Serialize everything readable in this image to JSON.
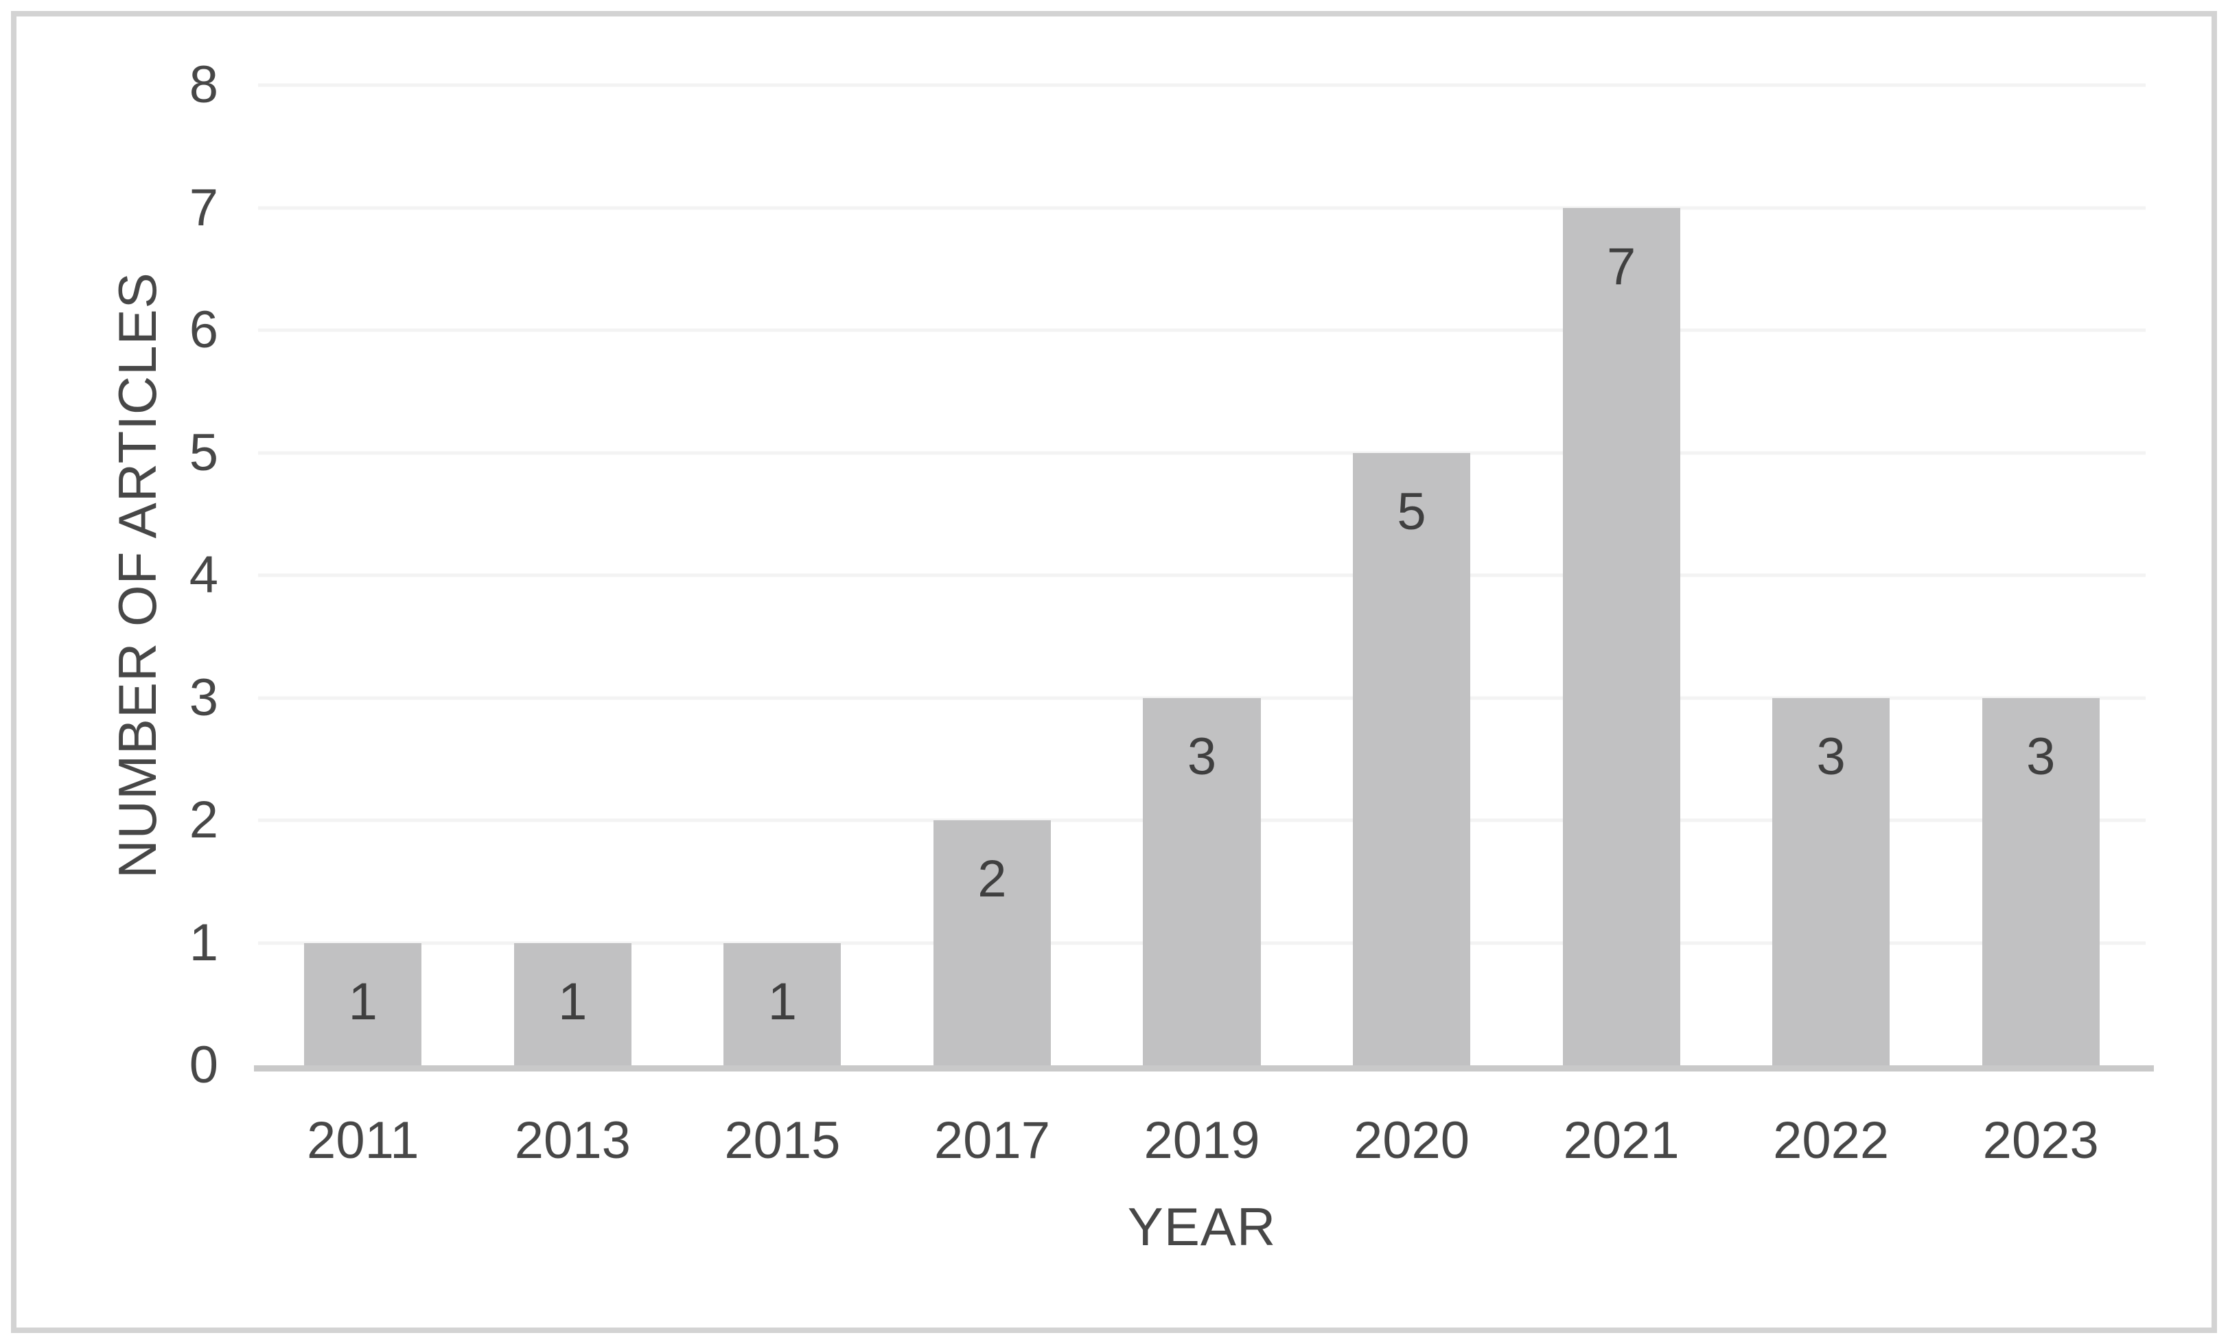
{
  "figure": {
    "background": "#ffffff",
    "border_color": "#d3d3d3"
  },
  "chart_data": {
    "type": "bar",
    "categories": [
      "2011",
      "2013",
      "2015",
      "2017",
      "2019",
      "2020",
      "2021",
      "2022",
      "2023"
    ],
    "values": [
      1,
      1,
      1,
      2,
      3,
      5,
      7,
      3,
      3
    ],
    "xlabel": "YEAR",
    "ylabel": "NUMBER OF ARTICLES",
    "ylim": [
      0,
      8
    ],
    "yticks": [
      0,
      1,
      2,
      3,
      4,
      5,
      6,
      7,
      8
    ],
    "grid": "horizontal",
    "legend": "none",
    "data_labels": "inside-end",
    "bar_gap_ratio": 0.44,
    "colors": {
      "bar_fill": "#c1c1c2",
      "bar_value_label": "#3f3f3f",
      "axis_tick_text": "#474747",
      "gridline": "#f3f3f3",
      "axis_line": "#c9c9c9"
    }
  }
}
